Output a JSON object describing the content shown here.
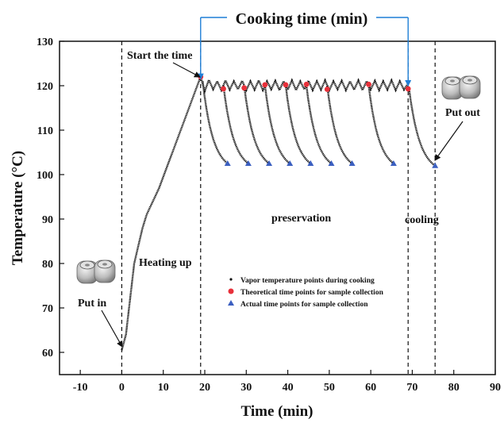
{
  "chart_data": {
    "type": "scatter",
    "title": "",
    "header": "Cooking time (min)",
    "xlabel": "Time (min)",
    "ylabel": "Temperature (°C)",
    "xlim": [
      -15,
      90
    ],
    "ylim": [
      55,
      130
    ],
    "xticks": [
      -10,
      0,
      10,
      20,
      30,
      40,
      50,
      60,
      70,
      80,
      90
    ],
    "yticks": [
      60,
      70,
      80,
      90,
      100,
      110,
      120,
      130
    ],
    "grid": false,
    "legend_position": "center",
    "phase_boundaries": [
      0,
      19,
      69,
      75.5
    ],
    "annotations": {
      "start": "Start the time",
      "put_in": "Put in",
      "put_out": "Put out",
      "heating": "Heating up",
      "preservation": "preservation",
      "cooling": "cooling"
    },
    "series": [
      {
        "name": "Vapor temperature points during cooking",
        "marker": "dot",
        "color": "#111111",
        "heating_up": [
          [
            0,
            60.5
          ],
          [
            1,
            64
          ],
          [
            2,
            72
          ],
          [
            3,
            80
          ],
          [
            4,
            84
          ],
          [
            5,
            88
          ],
          [
            6,
            91
          ],
          [
            7,
            93
          ],
          [
            8,
            95
          ],
          [
            9,
            97
          ],
          [
            10,
            99.5
          ],
          [
            11,
            102
          ],
          [
            12,
            104.5
          ],
          [
            13,
            107
          ],
          [
            14,
            109.5
          ],
          [
            15,
            112
          ],
          [
            16,
            114.5
          ],
          [
            17,
            117
          ],
          [
            18,
            119.5
          ],
          [
            19,
            122
          ]
        ],
        "preservation": [
          [
            19,
            122
          ],
          [
            20,
            118.8
          ],
          [
            21,
            121.3
          ],
          [
            22,
            119.2
          ],
          [
            23,
            121
          ],
          [
            24,
            119
          ],
          [
            25,
            121.2
          ],
          [
            26,
            119.1
          ],
          [
            27,
            121
          ],
          [
            28,
            119.2
          ],
          [
            29,
            121.1
          ],
          [
            30,
            119
          ],
          [
            31,
            121
          ],
          [
            32,
            119.1
          ],
          [
            33,
            121.2
          ],
          [
            34,
            119
          ],
          [
            35,
            121
          ],
          [
            36,
            119.2
          ],
          [
            37,
            121.1
          ],
          [
            38,
            119
          ],
          [
            39,
            121
          ],
          [
            40,
            119.1
          ],
          [
            41,
            121.2
          ],
          [
            42,
            119
          ],
          [
            43,
            121
          ],
          [
            44,
            119.2
          ],
          [
            45,
            121.1
          ],
          [
            46,
            119
          ],
          [
            47,
            121
          ],
          [
            48,
            119.1
          ],
          [
            49,
            121.2
          ],
          [
            50,
            119
          ],
          [
            51,
            121
          ],
          [
            52,
            119.2
          ],
          [
            53,
            121.1
          ],
          [
            54,
            119
          ],
          [
            55,
            121
          ],
          [
            56,
            119.1
          ],
          [
            57,
            121.2
          ],
          [
            58,
            119
          ],
          [
            59,
            121
          ],
          [
            60,
            119.2
          ],
          [
            61,
            121.1
          ],
          [
            62,
            119
          ],
          [
            63,
            121
          ],
          [
            64,
            119.1
          ],
          [
            65,
            121.2
          ],
          [
            66,
            119
          ],
          [
            67,
            121
          ],
          [
            68,
            119.1
          ],
          [
            69,
            120.5
          ]
        ],
        "cooling_branches": [
          {
            "start": [
              19.5,
              121
            ],
            "end": [
              25.5,
              102.5
            ]
          },
          {
            "start": [
              24.5,
              120
            ],
            "end": [
              30.5,
              102.5
            ]
          },
          {
            "start": [
              29.5,
              120
            ],
            "end": [
              35.5,
              102.5
            ]
          },
          {
            "start": [
              34.5,
              120
            ],
            "end": [
              40.5,
              102.5
            ]
          },
          {
            "start": [
              39.5,
              120
            ],
            "end": [
              45.5,
              102.5
            ]
          },
          {
            "start": [
              44.5,
              120
            ],
            "end": [
              50.5,
              102.5
            ]
          },
          {
            "start": [
              49.5,
              120
            ],
            "end": [
              55.5,
              102.5
            ]
          },
          {
            "start": [
              59.5,
              120
            ],
            "end": [
              65.5,
              102.5
            ]
          },
          {
            "start": [
              69.2,
              119.5
            ],
            "end": [
              75.5,
              102
            ]
          }
        ]
      },
      {
        "name": "Theoretical time points for sample collection",
        "marker": "circle",
        "color": "#e8303a",
        "points": [
          [
            19,
            122
          ],
          [
            24.5,
            119.3
          ],
          [
            29.5,
            119.5
          ],
          [
            34.5,
            120.2
          ],
          [
            39.5,
            120.2
          ],
          [
            44.5,
            120.3
          ],
          [
            49.5,
            119.2
          ],
          [
            59.5,
            120.3
          ],
          [
            69,
            119.3
          ]
        ]
      },
      {
        "name": "Actual time points for sample collection",
        "marker": "triangle",
        "color": "#3b5fc0",
        "points": [
          [
            25.5,
            102.5
          ],
          [
            30.5,
            102.5
          ],
          [
            35.5,
            102.5
          ],
          [
            40.5,
            102.5
          ],
          [
            45.5,
            102.5
          ],
          [
            50.5,
            102.5
          ],
          [
            55.5,
            102.5
          ],
          [
            65.5,
            102.5
          ],
          [
            75.5,
            102
          ]
        ]
      }
    ]
  }
}
